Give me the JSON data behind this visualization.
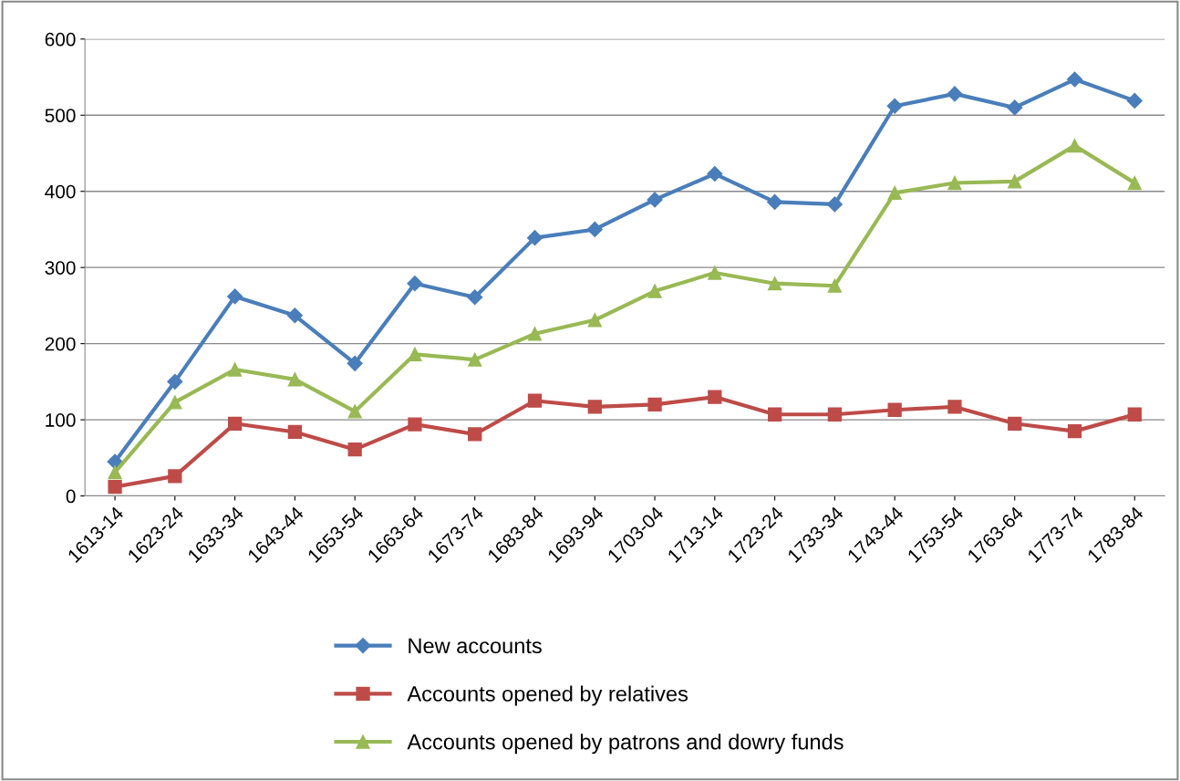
{
  "chart_data": {
    "type": "line",
    "categories": [
      "1613-14",
      "1623-24",
      "1633-34",
      "1643-44",
      "1653-54",
      "1663-64",
      "1673-74",
      "1683-84",
      "1693-94",
      "1703-04",
      "1713-14",
      "1723-24",
      "1733-34",
      "1743-44",
      "1753-54",
      "1763-64",
      "1773-74",
      "1783-84"
    ],
    "series": [
      {
        "name": "New accounts",
        "color": "#4a7ebb",
        "marker": "diamond",
        "values": [
          45,
          150,
          262,
          237,
          174,
          279,
          261,
          339,
          350,
          389,
          423,
          386,
          383,
          512,
          528,
          510,
          547,
          519
        ]
      },
      {
        "name": "Accounts opened by relatives",
        "color": "#be4b48",
        "marker": "square",
        "values": [
          12,
          26,
          95,
          84,
          61,
          94,
          81,
          125,
          117,
          120,
          130,
          107,
          107,
          113,
          117,
          95,
          85,
          107
        ]
      },
      {
        "name": "Accounts opened by patrons and dowry funds",
        "color": "#98b954",
        "marker": "triangle",
        "values": [
          31,
          123,
          166,
          153,
          111,
          186,
          179,
          213,
          231,
          269,
          293,
          279,
          276,
          398,
          411,
          413,
          460,
          411
        ]
      }
    ],
    "ylim": [
      0,
      600
    ],
    "yticks": [
      0,
      100,
      200,
      300,
      400,
      500,
      600
    ],
    "grid": "y",
    "legend": "bottom",
    "line_style": "solid"
  }
}
